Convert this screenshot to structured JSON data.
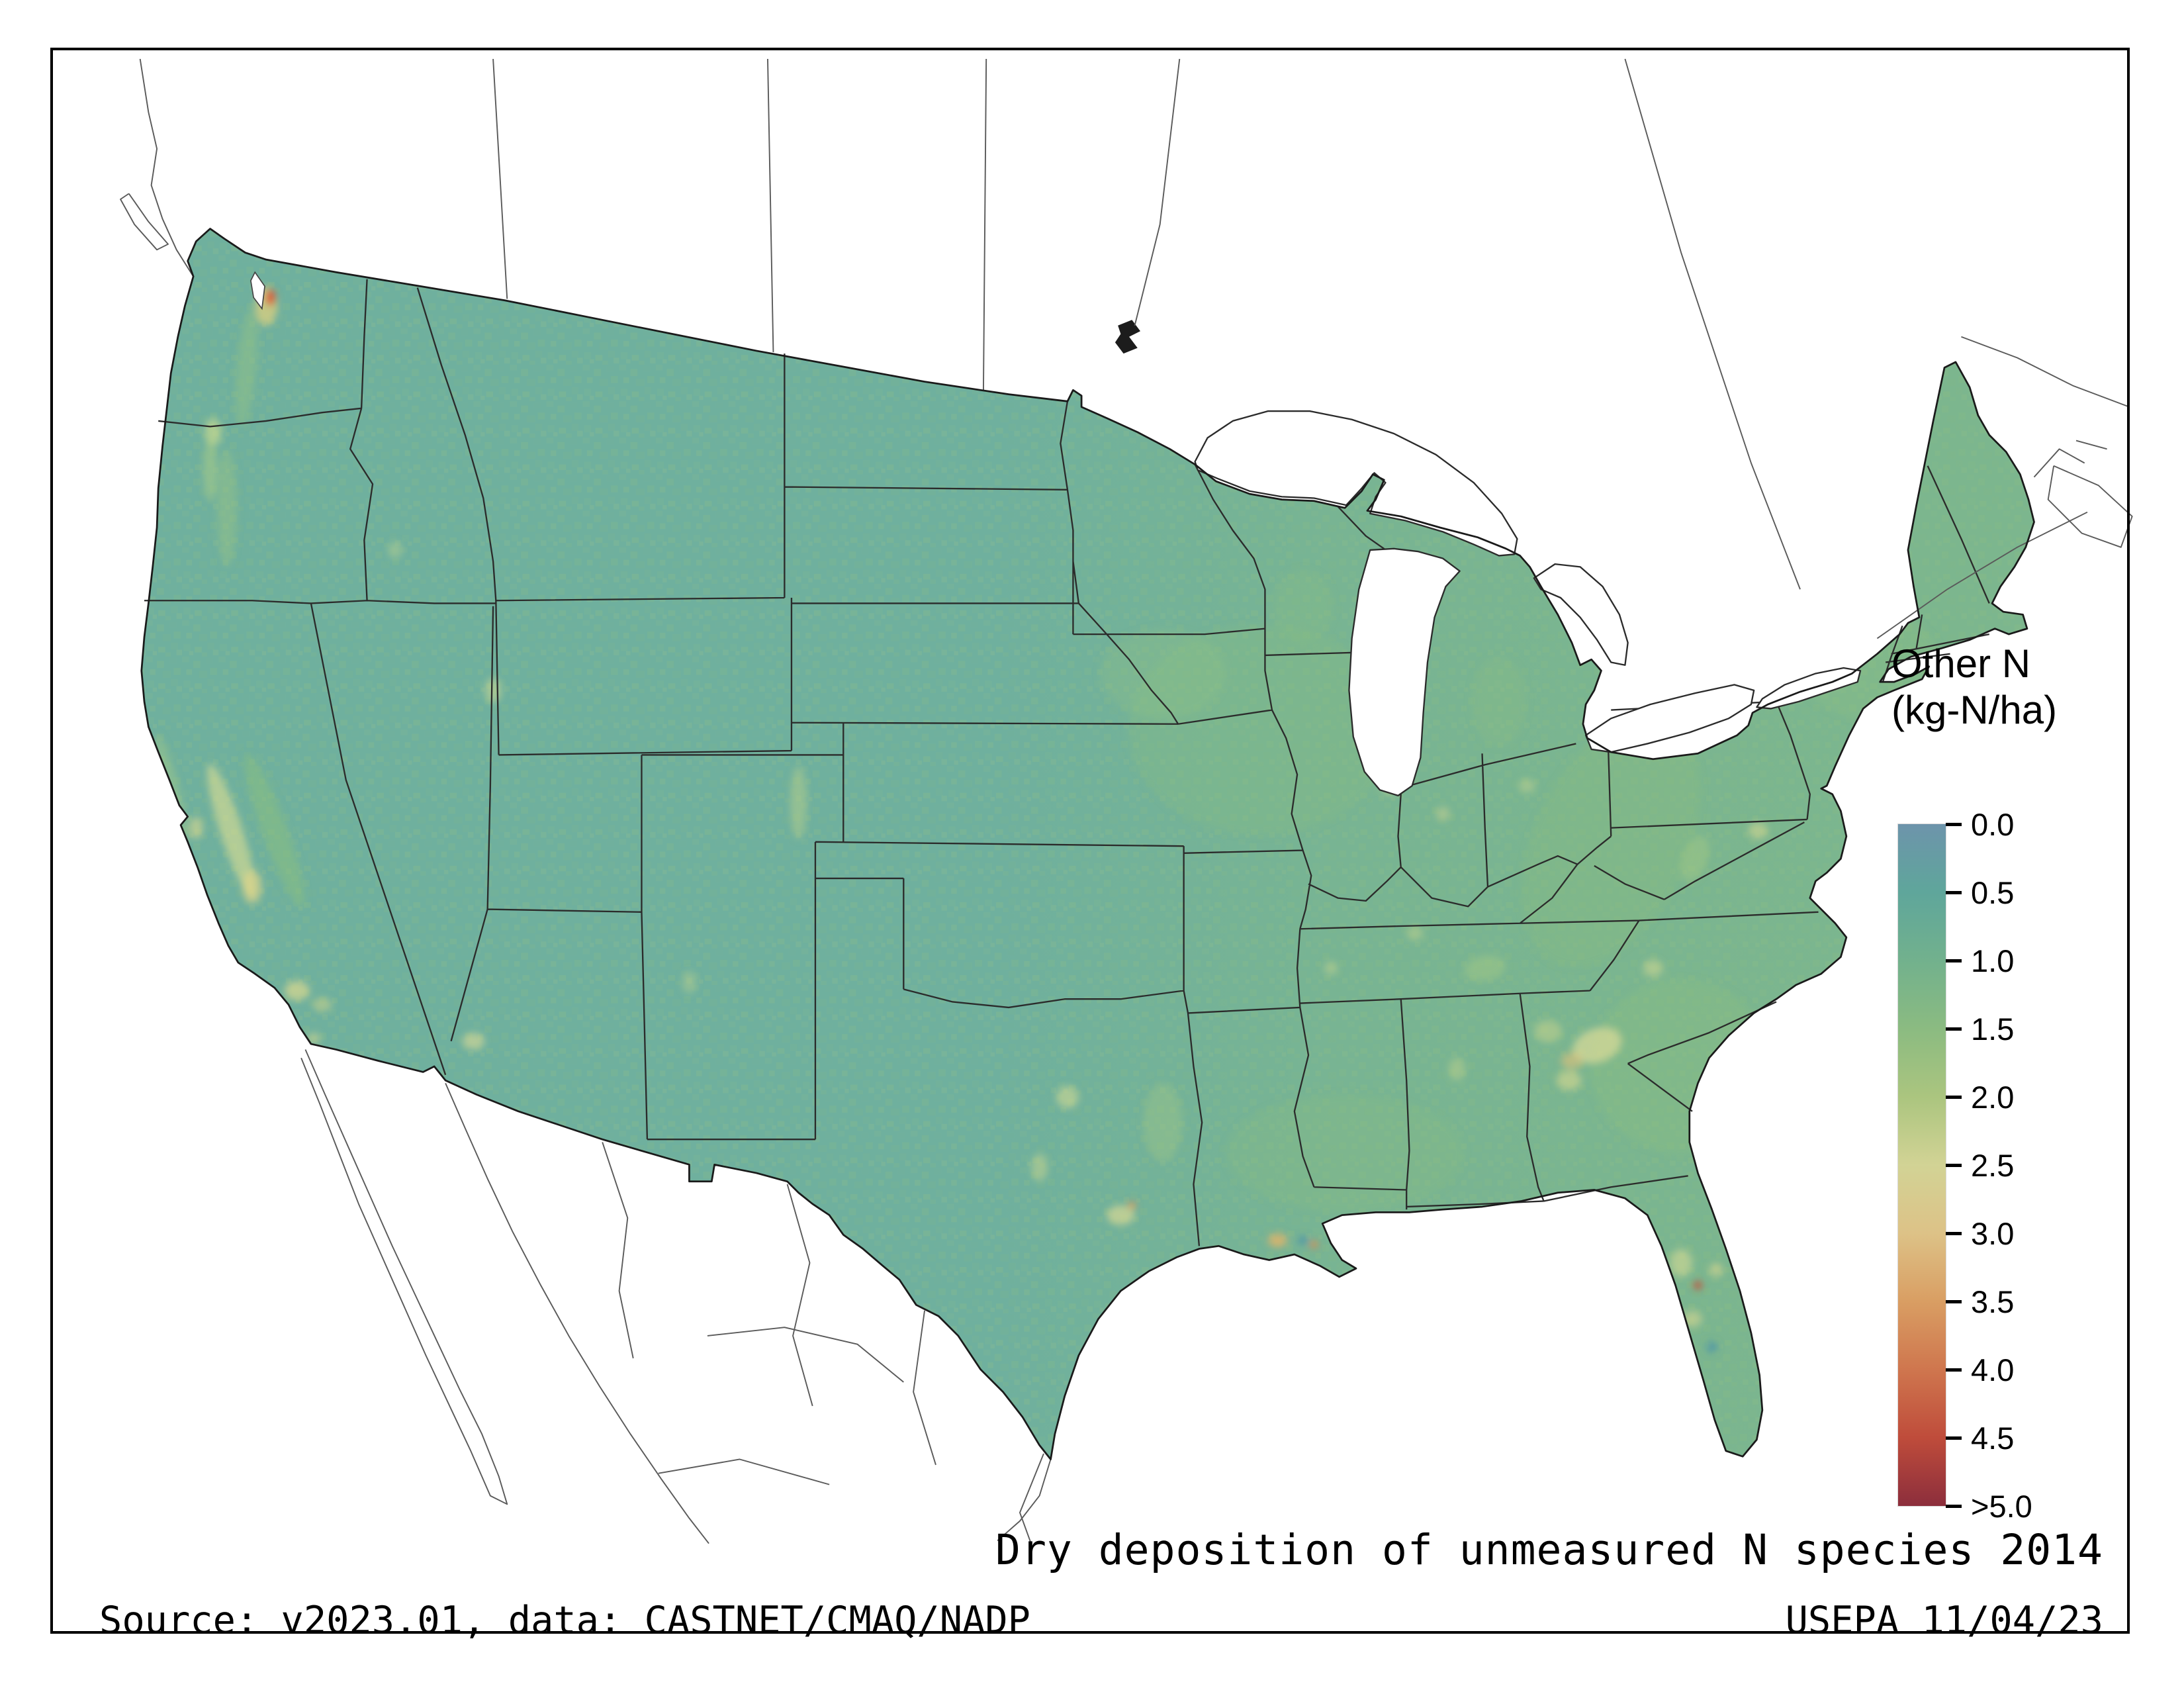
{
  "legend": {
    "title_line1": "Other N",
    "title_line2": "(kg-N/ha)",
    "ticks": [
      {
        "label": "0.0",
        "color": "#6d94ab"
      },
      {
        "label": "0.5",
        "color": "#5fa69b"
      },
      {
        "label": "1.0",
        "color": "#72b18d"
      },
      {
        "label": "1.5",
        "color": "#8bbb81"
      },
      {
        "label": "2.0",
        "color": "#abc57f"
      },
      {
        "label": "2.5",
        "color": "#d2d395"
      },
      {
        "label": "3.0",
        "color": "#ddc287"
      },
      {
        "label": "3.5",
        "color": "#d99e63"
      },
      {
        "label": "4.0",
        "color": "#cf764e"
      },
      {
        "label": "4.5",
        "color": "#bf4c3b"
      },
      {
        "label": ">5.0",
        "color": "#8c2e3c"
      }
    ]
  },
  "caption": {
    "title": "Dry deposition of unmeasured N species 2014",
    "source": "Source: v2023.01, data: CASTNET/CMAQ/NADP",
    "agency": "USEPA 11/04/23"
  },
  "map": {
    "base_color": "#6fb09e",
    "water_color": "#ffffff",
    "state_line_color": "#2b2b2b",
    "neighbor_line_color": "#5a5a5a",
    "hotspots_format": "[cx, cy, rx, ry, rotation_deg, color, opacity]",
    "hotspots": [
      [
        900,
        520,
        95,
        75,
        0,
        "#87bc80",
        0.3
      ],
      [
        830,
        480,
        45,
        32,
        0,
        "#94c381",
        0.28
      ],
      [
        1150,
        600,
        55,
        95,
        25,
        "#8abd7f",
        0.3
      ],
      [
        1200,
        760,
        65,
        62,
        0,
        "#8ec07e",
        0.3
      ],
      [
        1330,
        470,
        62,
        42,
        20,
        "#90c181",
        0.28
      ],
      [
        960,
        822,
        85,
        42,
        0,
        "#8abd7f",
        0.26
      ],
      [
        930,
        432,
        22,
        26,
        0,
        "#8dbf81",
        0.25
      ],
      [
        1070,
        500,
        20,
        32,
        0,
        "#8ec081",
        0.25
      ],
      [
        830,
        800,
        14,
        28,
        0,
        "#a3c883",
        0.38
      ],
      [
        1060,
        690,
        15,
        9,
        -10,
        "#a6c983",
        0.45
      ],
      [
        1210,
        612,
        9,
        17,
        20,
        "#a6c983",
        0.45
      ],
      [
        176,
        262,
        7,
        42,
        5,
        "#96c383",
        0.45
      ],
      [
        162,
        362,
        7,
        42,
        0,
        "#99c483",
        0.45
      ],
      [
        122,
        562,
        6,
        40,
        -15,
        "#a5ca85",
        0.45
      ],
      [
        196,
        592,
        9,
        58,
        -20,
        "#8cbf7d",
        0.5
      ],
      [
        190,
        218,
        8,
        14,
        0,
        "#e6d27c",
        0.7
      ],
      [
        193,
        212,
        3.5,
        6,
        0,
        "#d84f35",
        0.9
      ],
      [
        152,
        308,
        6,
        10,
        0,
        "#cfdd8e",
        0.65
      ],
      [
        150,
        335,
        5,
        22,
        0,
        "#a9cc85",
        0.55
      ],
      [
        282,
        392,
        5,
        6,
        0,
        "#c2d48c",
        0.45
      ],
      [
        352,
        492,
        6,
        9,
        0,
        "#cfd98f",
        0.55
      ],
      [
        570,
        572,
        6,
        26,
        0,
        "#b8cf8a",
        0.5
      ],
      [
        492,
        700,
        5,
        8,
        0,
        "#bdd08b",
        0.45
      ],
      [
        338,
        742,
        8,
        6,
        0,
        "#e0dc94",
        0.6
      ],
      [
        165,
        592,
        8,
        50,
        -18,
        "#dfe093",
        0.6
      ],
      [
        180,
        632,
        7,
        12,
        0,
        "#e3d689",
        0.65
      ],
      [
        140,
        590,
        5,
        8,
        0,
        "#ded98e",
        0.6
      ],
      [
        212,
        706,
        9,
        7,
        0,
        "#dcd88f",
        0.7
      ],
      [
        230,
        716,
        7,
        5,
        0,
        "#cdd489",
        0.55
      ],
      [
        224,
        740,
        5,
        4,
        0,
        "#d8d88e",
        0.55
      ],
      [
        762,
        782,
        8,
        8,
        0,
        "#d8dc92",
        0.55
      ],
      [
        742,
        832,
        6,
        10,
        0,
        "#ccd78e",
        0.5
      ],
      [
        800,
        866,
        10,
        7,
        0,
        "#e0dc94",
        0.65
      ],
      [
        808,
        859,
        3,
        3,
        0,
        "#de9a5c",
        0.8
      ],
      [
        912,
        884,
        7,
        5,
        0,
        "#e2b469",
        0.8
      ],
      [
        930,
        884,
        4,
        3,
        0,
        "#4f96a8",
        0.9
      ],
      [
        938,
        887,
        3,
        3,
        0,
        "#dd8852",
        0.8
      ],
      [
        992,
        560,
        6,
        6,
        0,
        "#d6db91",
        0.55
      ],
      [
        1030,
        580,
        5,
        5,
        0,
        "#d8d890",
        0.45
      ],
      [
        1090,
        560,
        6,
        5,
        0,
        "#cdd68d",
        0.45
      ],
      [
        1180,
        520,
        10,
        7,
        0,
        "#e2dc95",
        0.65
      ],
      [
        1205,
        495,
        14,
        10,
        0,
        "#e6e09b",
        0.7
      ],
      [
        1230,
        505,
        8,
        6,
        0,
        "#ddd892",
        0.55
      ],
      [
        1310,
        480,
        6,
        10,
        0,
        "#b7cf8a",
        0.5
      ],
      [
        1255,
        592,
        7,
        6,
        0,
        "#d9d992",
        0.55
      ],
      [
        1180,
        690,
        7,
        6,
        0,
        "#d4d98f",
        0.55
      ],
      [
        1140,
        745,
        18,
        12,
        -20,
        "#e4df9a",
        0.65
      ],
      [
        1122,
        756,
        8,
        6,
        0,
        "#dfc27c",
        0.6
      ],
      [
        1120,
        770,
        9,
        7,
        0,
        "#d8d890",
        0.6
      ],
      [
        1105,
        735,
        10,
        8,
        0,
        "#cbd58c",
        0.5
      ],
      [
        950,
        690,
        5,
        5,
        0,
        "#cdd68d",
        0.45
      ],
      [
        1010,
        665,
        6,
        5,
        0,
        "#ccd68c",
        0.45
      ],
      [
        1040,
        762,
        6,
        8,
        0,
        "#c6d38a",
        0.45
      ],
      [
        1200,
        900,
        8,
        10,
        0,
        "#dede96",
        0.55
      ],
      [
        1208,
        940,
        7,
        6,
        0,
        "#dcd892",
        0.55
      ],
      [
        1225,
        905,
        5,
        5,
        0,
        "#e0d88f",
        0.55
      ],
      [
        1212,
        916,
        3,
        3,
        0,
        "#cb4a33",
        0.9
      ],
      [
        1222,
        960,
        4,
        4,
        0,
        "#4f96a8",
        0.85
      ]
    ]
  }
}
